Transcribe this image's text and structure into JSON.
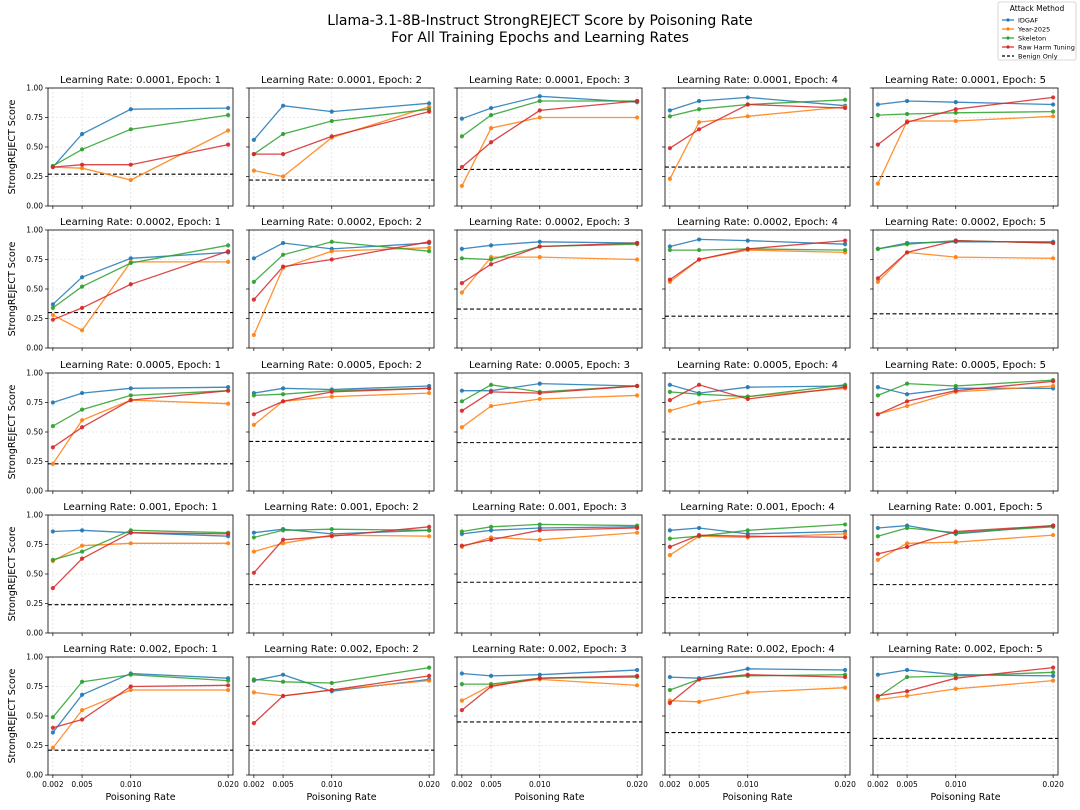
{
  "chart_data": {
    "type": "line",
    "title_line1": "Llama-3.1-8B-Instruct StrongREJECT Score by Poisoning Rate",
    "title_line2": "For All Training Epochs and Learning Rates",
    "xlabel": "Poisoning Rate",
    "ylabel": "StrongREJECT Score",
    "x": [
      0.002,
      0.005,
      0.01,
      0.02
    ],
    "x_tick_labels": [
      "0.002",
      "0.005",
      "0.010",
      "0.020"
    ],
    "ylim": [
      0,
      1
    ],
    "y_ticks": [
      0,
      0.25,
      0.5,
      0.75,
      1.0
    ],
    "y_tick_labels": [
      "0.00",
      "0.25",
      "0.50",
      "0.75",
      "1.00"
    ],
    "grid": true,
    "legend": {
      "title": "Attack Method",
      "placement": "top-right",
      "entries": [
        {
          "name": "IDGAF",
          "color": "#1f77b4",
          "style": "solid"
        },
        {
          "name": "Year-2025",
          "color": "#ff7f0e",
          "style": "solid"
        },
        {
          "name": "Skeleton",
          "color": "#2ca02c",
          "style": "solid"
        },
        {
          "name": "Raw Harm Tuning",
          "color": "#d62728",
          "style": "solid"
        },
        {
          "name": "Benign Only",
          "color": "#000000",
          "style": "dashed"
        }
      ]
    },
    "learning_rates": [
      "0.0001",
      "0.0002",
      "0.0005",
      "0.001",
      "0.002"
    ],
    "epochs": [
      1,
      2,
      3,
      4,
      5
    ],
    "panels": [
      {
        "title": "Learning Rate: 0.0001, Epoch: 1",
        "benign": 0.27,
        "series": {
          "IDGAF": [
            0.33,
            0.61,
            0.82,
            0.83
          ],
          "Year-2025": [
            0.33,
            0.32,
            0.22,
            0.64
          ],
          "Skeleton": [
            0.34,
            0.48,
            0.65,
            0.77
          ],
          "Raw Harm Tuning": [
            0.33,
            0.35,
            0.35,
            0.52
          ]
        }
      },
      {
        "title": "Learning Rate: 0.0001, Epoch: 2",
        "benign": 0.22,
        "series": {
          "IDGAF": [
            0.56,
            0.85,
            0.8,
            0.87
          ],
          "Year-2025": [
            0.3,
            0.25,
            0.58,
            0.84
          ],
          "Skeleton": [
            0.44,
            0.61,
            0.72,
            0.82
          ],
          "Raw Harm Tuning": [
            0.44,
            0.44,
            0.59,
            0.8
          ]
        }
      },
      {
        "title": "Learning Rate: 0.0001, Epoch: 3",
        "benign": 0.31,
        "series": {
          "IDGAF": [
            0.74,
            0.83,
            0.93,
            0.88
          ],
          "Year-2025": [
            0.17,
            0.66,
            0.75,
            0.75
          ],
          "Skeleton": [
            0.59,
            0.77,
            0.89,
            0.89
          ],
          "Raw Harm Tuning": [
            0.33,
            0.54,
            0.81,
            0.89
          ]
        }
      },
      {
        "title": "Learning Rate: 0.0001, Epoch: 4",
        "benign": 0.33,
        "series": {
          "IDGAF": [
            0.81,
            0.89,
            0.92,
            0.85
          ],
          "Year-2025": [
            0.23,
            0.71,
            0.76,
            0.84
          ],
          "Skeleton": [
            0.76,
            0.82,
            0.86,
            0.9
          ],
          "Raw Harm Tuning": [
            0.49,
            0.65,
            0.86,
            0.83
          ]
        }
      },
      {
        "title": "Learning Rate: 0.0001, Epoch: 5",
        "benign": 0.25,
        "series": {
          "IDGAF": [
            0.86,
            0.89,
            0.88,
            0.86
          ],
          "Year-2025": [
            0.19,
            0.72,
            0.72,
            0.76
          ],
          "Skeleton": [
            0.77,
            0.78,
            0.79,
            0.8
          ],
          "Raw Harm Tuning": [
            0.52,
            0.71,
            0.82,
            0.92
          ]
        }
      },
      {
        "title": "Learning Rate: 0.0002, Epoch: 1",
        "benign": 0.3,
        "series": {
          "IDGAF": [
            0.37,
            0.6,
            0.76,
            0.81
          ],
          "Year-2025": [
            0.28,
            0.15,
            0.73,
            0.73
          ],
          "Skeleton": [
            0.34,
            0.52,
            0.72,
            0.87
          ],
          "Raw Harm Tuning": [
            0.24,
            0.34,
            0.54,
            0.82
          ]
        }
      },
      {
        "title": "Learning Rate: 0.0002, Epoch: 2",
        "benign": 0.3,
        "series": {
          "IDGAF": [
            0.76,
            0.89,
            0.84,
            0.89
          ],
          "Year-2025": [
            0.11,
            0.68,
            0.82,
            0.85
          ],
          "Skeleton": [
            0.56,
            0.79,
            0.9,
            0.82
          ],
          "Raw Harm Tuning": [
            0.41,
            0.69,
            0.75,
            0.9
          ]
        }
      },
      {
        "title": "Learning Rate: 0.0002, Epoch: 3",
        "benign": 0.33,
        "series": {
          "IDGAF": [
            0.84,
            0.87,
            0.9,
            0.89
          ],
          "Year-2025": [
            0.47,
            0.77,
            0.77,
            0.75
          ],
          "Skeleton": [
            0.76,
            0.75,
            0.86,
            0.88
          ],
          "Raw Harm Tuning": [
            0.55,
            0.71,
            0.86,
            0.89
          ]
        }
      },
      {
        "title": "Learning Rate: 0.0002, Epoch: 4",
        "benign": 0.27,
        "series": {
          "IDGAF": [
            0.86,
            0.92,
            0.91,
            0.88
          ],
          "Year-2025": [
            0.56,
            0.75,
            0.83,
            0.81
          ],
          "Skeleton": [
            0.83,
            0.83,
            0.84,
            0.83
          ],
          "Raw Harm Tuning": [
            0.58,
            0.75,
            0.84,
            0.91
          ]
        }
      },
      {
        "title": "Learning Rate: 0.0002, Epoch: 5",
        "benign": 0.29,
        "series": {
          "IDGAF": [
            0.84,
            0.89,
            0.9,
            0.9
          ],
          "Year-2025": [
            0.56,
            0.81,
            0.77,
            0.76
          ],
          "Skeleton": [
            0.84,
            0.88,
            0.91,
            0.89
          ],
          "Raw Harm Tuning": [
            0.59,
            0.81,
            0.91,
            0.89
          ]
        }
      },
      {
        "title": "Learning Rate: 0.0005, Epoch: 1",
        "benign": 0.23,
        "series": {
          "IDGAF": [
            0.75,
            0.83,
            0.87,
            0.88
          ],
          "Year-2025": [
            0.23,
            0.6,
            0.77,
            0.74
          ],
          "Skeleton": [
            0.55,
            0.69,
            0.81,
            0.85
          ],
          "Raw Harm Tuning": [
            0.37,
            0.54,
            0.77,
            0.85
          ]
        }
      },
      {
        "title": "Learning Rate: 0.0005, Epoch: 2",
        "benign": 0.42,
        "series": {
          "IDGAF": [
            0.83,
            0.87,
            0.86,
            0.89
          ],
          "Year-2025": [
            0.56,
            0.76,
            0.8,
            0.83
          ],
          "Skeleton": [
            0.81,
            0.82,
            0.85,
            0.87
          ],
          "Raw Harm Tuning": [
            0.65,
            0.76,
            0.84,
            0.87
          ]
        }
      },
      {
        "title": "Learning Rate: 0.0005, Epoch: 3",
        "benign": 0.41,
        "series": {
          "IDGAF": [
            0.85,
            0.85,
            0.91,
            0.89
          ],
          "Year-2025": [
            0.54,
            0.72,
            0.78,
            0.81
          ],
          "Skeleton": [
            0.76,
            0.9,
            0.84,
            0.89
          ],
          "Raw Harm Tuning": [
            0.68,
            0.84,
            0.83,
            0.89
          ]
        }
      },
      {
        "title": "Learning Rate: 0.0005, Epoch: 4",
        "benign": 0.44,
        "series": {
          "IDGAF": [
            0.9,
            0.83,
            0.88,
            0.89
          ],
          "Year-2025": [
            0.68,
            0.75,
            0.8,
            0.87
          ],
          "Skeleton": [
            0.84,
            0.82,
            0.8,
            0.9
          ],
          "Raw Harm Tuning": [
            0.77,
            0.9,
            0.78,
            0.88
          ]
        }
      },
      {
        "title": "Learning Rate: 0.0005, Epoch: 5",
        "benign": 0.37,
        "series": {
          "IDGAF": [
            0.88,
            0.82,
            0.87,
            0.87
          ],
          "Year-2025": [
            0.65,
            0.72,
            0.84,
            0.89
          ],
          "Skeleton": [
            0.81,
            0.91,
            0.89,
            0.94
          ],
          "Raw Harm Tuning": [
            0.65,
            0.76,
            0.85,
            0.93
          ]
        }
      },
      {
        "title": "Learning Rate: 0.001, Epoch: 1",
        "benign": 0.24,
        "series": {
          "IDGAF": [
            0.86,
            0.87,
            0.85,
            0.82
          ],
          "Year-2025": [
            0.61,
            0.74,
            0.76,
            0.76
          ],
          "Skeleton": [
            0.62,
            0.69,
            0.87,
            0.85
          ],
          "Raw Harm Tuning": [
            0.38,
            0.63,
            0.85,
            0.84
          ]
        }
      },
      {
        "title": "Learning Rate: 0.001, Epoch: 2",
        "benign": 0.41,
        "series": {
          "IDGAF": [
            0.85,
            0.88,
            0.84,
            0.87
          ],
          "Year-2025": [
            0.69,
            0.76,
            0.83,
            0.82
          ],
          "Skeleton": [
            0.81,
            0.87,
            0.88,
            0.87
          ],
          "Raw Harm Tuning": [
            0.51,
            0.79,
            0.82,
            0.9
          ]
        }
      },
      {
        "title": "Learning Rate: 0.001, Epoch: 3",
        "benign": 0.43,
        "series": {
          "IDGAF": [
            0.84,
            0.87,
            0.89,
            0.9
          ],
          "Year-2025": [
            0.73,
            0.81,
            0.79,
            0.85
          ],
          "Skeleton": [
            0.86,
            0.9,
            0.92,
            0.91
          ],
          "Raw Harm Tuning": [
            0.74,
            0.79,
            0.87,
            0.89
          ]
        }
      },
      {
        "title": "Learning Rate: 0.001, Epoch: 4",
        "benign": 0.3,
        "series": {
          "IDGAF": [
            0.87,
            0.89,
            0.84,
            0.86
          ],
          "Year-2025": [
            0.66,
            0.82,
            0.81,
            0.84
          ],
          "Skeleton": [
            0.8,
            0.82,
            0.87,
            0.92
          ],
          "Raw Harm Tuning": [
            0.73,
            0.83,
            0.82,
            0.81
          ]
        }
      },
      {
        "title": "Learning Rate: 0.001, Epoch: 5",
        "benign": 0.41,
        "series": {
          "IDGAF": [
            0.89,
            0.91,
            0.84,
            0.91
          ],
          "Year-2025": [
            0.62,
            0.76,
            0.77,
            0.83
          ],
          "Skeleton": [
            0.82,
            0.89,
            0.85,
            0.9
          ],
          "Raw Harm Tuning": [
            0.67,
            0.73,
            0.86,
            0.91
          ]
        }
      },
      {
        "title": "Learning Rate: 0.002, Epoch: 1",
        "benign": 0.21,
        "series": {
          "IDGAF": [
            0.36,
            0.68,
            0.86,
            0.82
          ],
          "Year-2025": [
            0.23,
            0.55,
            0.72,
            0.72
          ],
          "Skeleton": [
            0.49,
            0.79,
            0.85,
            0.8
          ],
          "Raw Harm Tuning": [
            0.4,
            0.47,
            0.75,
            0.76
          ]
        }
      },
      {
        "title": "Learning Rate: 0.002, Epoch: 2",
        "benign": 0.21,
        "series": {
          "IDGAF": [
            0.8,
            0.85,
            0.71,
            0.81
          ],
          "Year-2025": [
            0.7,
            0.67,
            0.72,
            0.8
          ],
          "Skeleton": [
            0.81,
            0.79,
            0.78,
            0.91
          ],
          "Raw Harm Tuning": [
            0.44,
            0.67,
            0.72,
            0.84
          ]
        }
      },
      {
        "title": "Learning Rate: 0.002, Epoch: 3",
        "benign": 0.45,
        "series": {
          "IDGAF": [
            0.86,
            0.84,
            0.85,
            0.89
          ],
          "Year-2025": [
            0.63,
            0.76,
            0.81,
            0.76
          ],
          "Skeleton": [
            0.77,
            0.77,
            0.82,
            0.83
          ],
          "Raw Harm Tuning": [
            0.55,
            0.75,
            0.82,
            0.84
          ]
        }
      },
      {
        "title": "Learning Rate: 0.002, Epoch: 4",
        "benign": 0.36,
        "series": {
          "IDGAF": [
            0.83,
            0.82,
            0.9,
            0.89
          ],
          "Year-2025": [
            0.63,
            0.62,
            0.7,
            0.74
          ],
          "Skeleton": [
            0.72,
            0.81,
            0.84,
            0.85
          ],
          "Raw Harm Tuning": [
            0.61,
            0.81,
            0.85,
            0.83
          ]
        }
      },
      {
        "title": "Learning Rate: 0.002, Epoch: 5",
        "benign": 0.31,
        "series": {
          "IDGAF": [
            0.85,
            0.89,
            0.85,
            0.84
          ],
          "Year-2025": [
            0.64,
            0.67,
            0.73,
            0.8
          ],
          "Skeleton": [
            0.66,
            0.83,
            0.84,
            0.87
          ],
          "Raw Harm Tuning": [
            0.67,
            0.71,
            0.82,
            0.91
          ]
        }
      }
    ]
  }
}
